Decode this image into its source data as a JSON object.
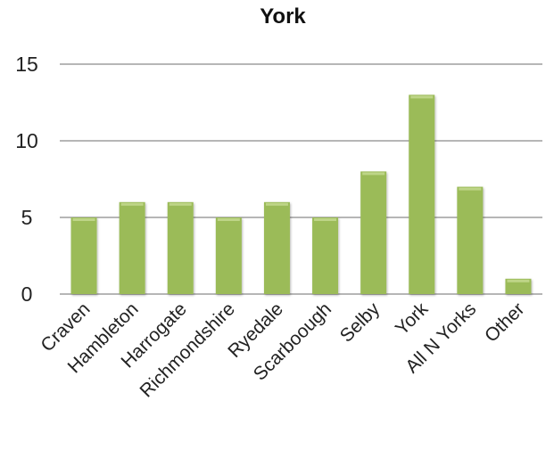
{
  "chart_data": {
    "type": "bar",
    "title": "York",
    "categories": [
      "Craven",
      "Hambleton",
      "Harrogate",
      "Richmondshire",
      "Ryedale",
      "Scarboough",
      "Selby",
      "York",
      "All N Yorks",
      "Other"
    ],
    "values": [
      5,
      6,
      6,
      5,
      6,
      5,
      8,
      13,
      7,
      1
    ],
    "ylim": [
      0,
      15
    ],
    "yticks": [
      "0",
      "5",
      "10",
      "15"
    ],
    "grid": true,
    "legend": "none",
    "colors": {
      "bar": "#9BBB59",
      "bar_highlight": "#C9DE97",
      "grid": "#8A8A8A",
      "text": "#222222"
    }
  }
}
